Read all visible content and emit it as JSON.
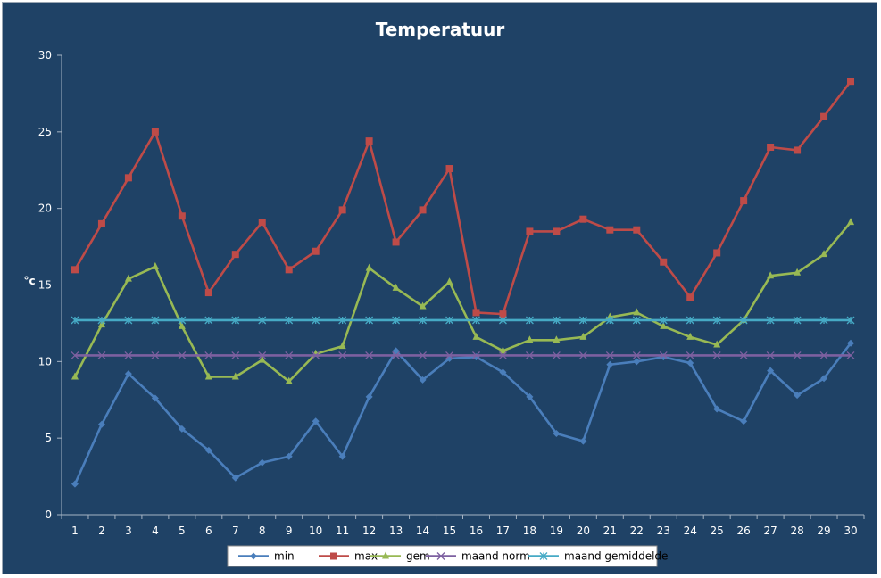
{
  "chart_data": {
    "type": "line",
    "title": "Temperatuur",
    "xlabel": "",
    "ylabel": "°c",
    "ylim": [
      0,
      30
    ],
    "yticks": [
      0,
      5,
      10,
      15,
      20,
      25,
      30
    ],
    "grid": false,
    "legend_position": "bottom",
    "categories": [
      "1",
      "2",
      "3",
      "4",
      "5",
      "6",
      "7",
      "8",
      "9",
      "10",
      "11",
      "12",
      "13",
      "14",
      "15",
      "16",
      "17",
      "18",
      "19",
      "20",
      "21",
      "22",
      "23",
      "24",
      "25",
      "26",
      "27",
      "28",
      "29",
      "30"
    ],
    "series": [
      {
        "name": "min",
        "color": "#4a7ebb",
        "marker": "diamond",
        "values": [
          2.0,
          5.9,
          9.2,
          7.6,
          5.6,
          4.2,
          2.4,
          3.4,
          3.8,
          6.1,
          3.8,
          7.7,
          10.7,
          8.8,
          10.2,
          10.3,
          9.3,
          7.7,
          5.3,
          4.8,
          9.8,
          10.0,
          10.3,
          9.9,
          6.9,
          6.1,
          9.4,
          7.8,
          8.9,
          11.2
        ]
      },
      {
        "name": "max",
        "color": "#be4b48",
        "marker": "square",
        "values": [
          16.0,
          19.0,
          22.0,
          25.0,
          19.5,
          14.5,
          17.0,
          19.1,
          16.0,
          17.2,
          19.9,
          24.4,
          17.8,
          19.9,
          22.6,
          13.2,
          13.1,
          18.5,
          18.5,
          19.3,
          18.6,
          18.6,
          16.5,
          14.2,
          17.1,
          20.5,
          24.0,
          23.8,
          26.0,
          28.3
        ]
      },
      {
        "name": "gem",
        "color": "#98b954",
        "marker": "triangle",
        "values": [
          9.0,
          12.4,
          15.4,
          16.2,
          12.3,
          9.0,
          9.0,
          10.1,
          8.7,
          10.5,
          11.0,
          16.1,
          14.8,
          13.6,
          15.2,
          11.6,
          10.7,
          11.4,
          11.4,
          11.6,
          12.9,
          13.2,
          12.3,
          11.6,
          11.1,
          12.7,
          15.6,
          15.8,
          17.0,
          19.1
        ]
      },
      {
        "name": "maand norm",
        "color": "#7d60a0",
        "marker": "x",
        "values": [
          10.4,
          10.4,
          10.4,
          10.4,
          10.4,
          10.4,
          10.4,
          10.4,
          10.4,
          10.4,
          10.4,
          10.4,
          10.4,
          10.4,
          10.4,
          10.4,
          10.4,
          10.4,
          10.4,
          10.4,
          10.4,
          10.4,
          10.4,
          10.4,
          10.4,
          10.4,
          10.4,
          10.4,
          10.4,
          10.4
        ]
      },
      {
        "name": "maand gemiddelde",
        "color": "#46aac5",
        "marker": "star",
        "values": [
          12.7,
          12.7,
          12.7,
          12.7,
          12.7,
          12.7,
          12.7,
          12.7,
          12.7,
          12.7,
          12.7,
          12.7,
          12.7,
          12.7,
          12.7,
          12.7,
          12.7,
          12.7,
          12.7,
          12.7,
          12.7,
          12.7,
          12.7,
          12.7,
          12.7,
          12.7,
          12.7,
          12.7,
          12.7,
          12.7
        ]
      }
    ]
  },
  "colors": {
    "background": "#1f4266",
    "axis": "#a6b4c4",
    "text": "#ffffff",
    "legend_background": "#ffffff"
  }
}
